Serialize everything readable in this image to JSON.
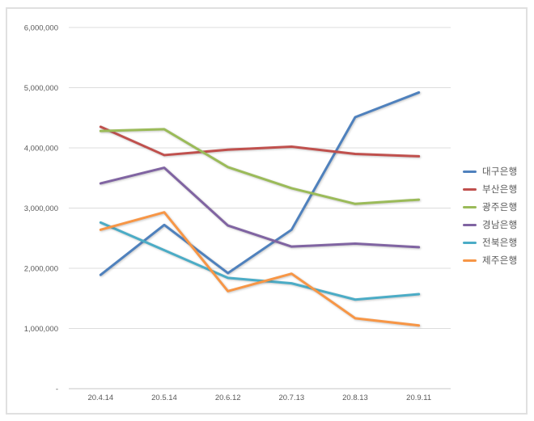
{
  "window": {
    "background_color": "#ffffff",
    "frame_border_color": "#e0e0e0"
  },
  "chart_data": {
    "type": "line",
    "title": "",
    "xlabel": "",
    "ylabel": "",
    "categories": [
      "20.4.14",
      "20.5.14",
      "20.6.12",
      "20.7.13",
      "20.8.13",
      "20.9.11"
    ],
    "series": [
      {
        "name": "대구은행",
        "color": "#4F81BD",
        "values": [
          1890000,
          2720000,
          1920000,
          2640000,
          4510000,
          4920000
        ]
      },
      {
        "name": "부산은행",
        "color": "#C0504D",
        "values": [
          4350000,
          3880000,
          3970000,
          4020000,
          3900000,
          3860000
        ]
      },
      {
        "name": "광주은행",
        "color": "#9BBB59",
        "values": [
          4280000,
          4310000,
          3680000,
          3330000,
          3070000,
          3140000
        ]
      },
      {
        "name": "경남은행",
        "color": "#8064A2",
        "values": [
          3410000,
          3670000,
          2710000,
          2360000,
          2410000,
          2350000
        ]
      },
      {
        "name": "전북은행",
        "color": "#4BACC6",
        "values": [
          2760000,
          2300000,
          1840000,
          1750000,
          1480000,
          1570000
        ]
      },
      {
        "name": "제주은행",
        "color": "#F79646",
        "values": [
          2640000,
          2930000,
          1620000,
          1910000,
          1170000,
          1050000
        ]
      }
    ],
    "ylim": [
      0,
      6000000
    ],
    "y_tick_interval": 1000000,
    "y_tick_labels": [
      "-",
      "1,000,000",
      "2,000,000",
      "3,000,000",
      "4,000,000",
      "5,000,000",
      "6,000,000"
    ],
    "grid": true,
    "legend_position": "right",
    "styles": {
      "gridline_color": "#dcdcdc",
      "axis_line_color": "#c6c6c6",
      "tick_label_color": "#595959",
      "legend_label_color": "#595959"
    }
  }
}
